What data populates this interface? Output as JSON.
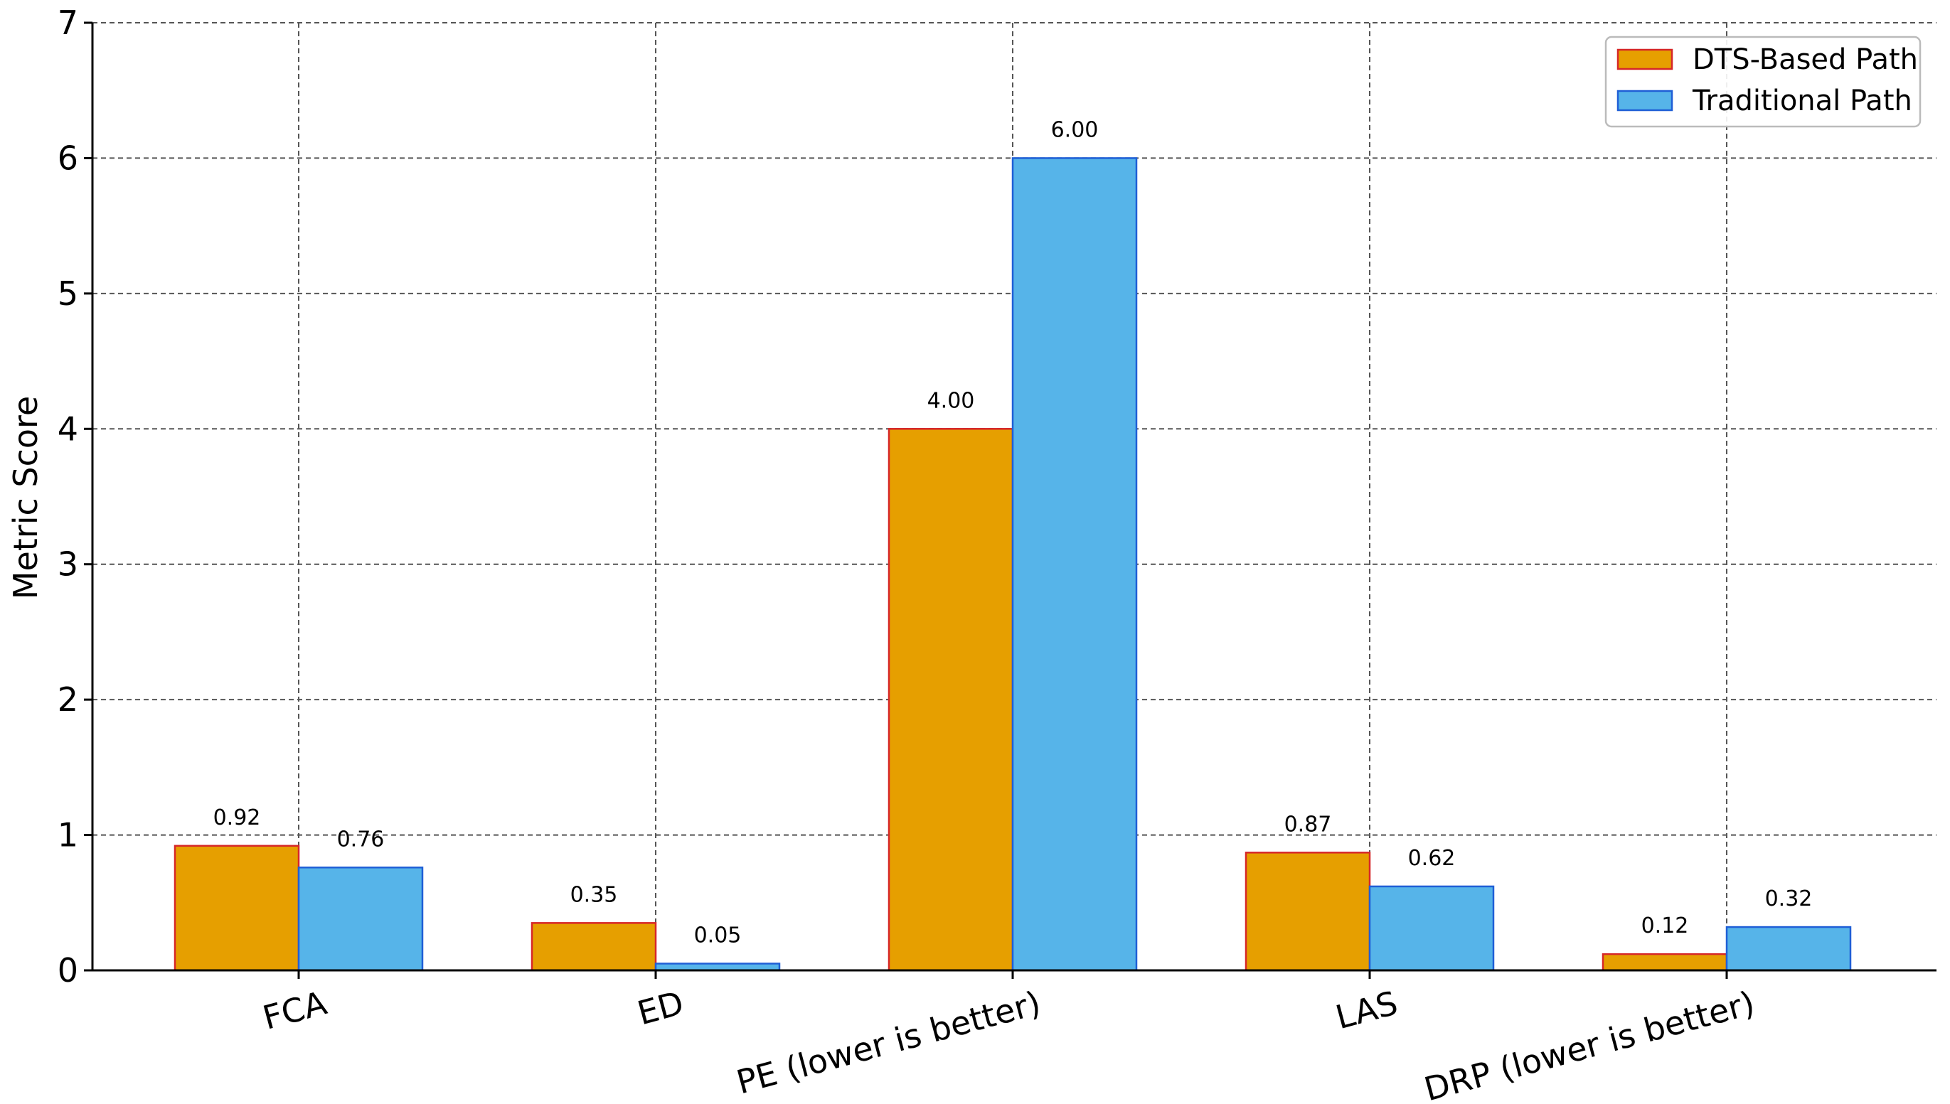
{
  "chart_data": {
    "type": "bar",
    "title": "",
    "xlabel": "",
    "ylabel": "Metric Score",
    "ylim": [
      0,
      7
    ],
    "yticks": [
      "0",
      "1",
      "2",
      "3",
      "4",
      "5",
      "6",
      "7"
    ],
    "grid": true,
    "legend_position": "top-right",
    "categories": [
      "FCA",
      "ED",
      "PE (lower is better)",
      "LAS",
      "DRP (lower is better)"
    ],
    "series": [
      {
        "name": "DTS-Based Path",
        "color": "#E69F00",
        "edge_color": "#D62728",
        "values": [
          0.92,
          0.35,
          4.0,
          0.87,
          0.12
        ],
        "labels": [
          "0.92",
          "0.35",
          "4.00",
          "0.87",
          "0.12"
        ]
      },
      {
        "name": "Traditional Path",
        "color": "#56B4E9",
        "edge_color": "#1F5FD6",
        "values": [
          0.76,
          0.05,
          6.0,
          0.62,
          0.32
        ],
        "labels": [
          "0.76",
          "0.05",
          "6.00",
          "0.62",
          "0.32"
        ]
      }
    ]
  }
}
